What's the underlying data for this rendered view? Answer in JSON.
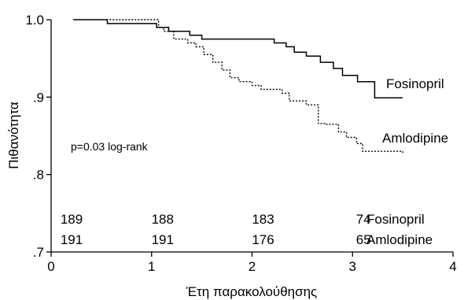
{
  "chart_data": {
    "type": "line",
    "subtype": "kaplan-meier-step",
    "title": "",
    "xlabel": "Έτη παρακολούθησης",
    "ylabel": "Πιθανότητα",
    "xlim": [
      0,
      4
    ],
    "ylim": [
      0.7,
      1.0
    ],
    "x_ticks": [
      0,
      1,
      2,
      3,
      4
    ],
    "x_tick_labels": [
      "0",
      "1",
      "2",
      "3",
      "4"
    ],
    "y_ticks": [
      0.7,
      0.8,
      0.9,
      1.0
    ],
    "y_tick_labels": [
      ".7",
      ".8",
      ".9",
      "1.0"
    ],
    "grid": false,
    "legend": "direct labels at line ends",
    "annotation": "p=0.03 log-rank",
    "series": [
      {
        "name": "Fosinopril",
        "line_style": "solid",
        "color": "#000000",
        "x": [
          0.22,
          0.56,
          1.05,
          1.17,
          1.38,
          1.5,
          1.67,
          2.22,
          2.34,
          2.42,
          2.54,
          2.68,
          2.81,
          2.9,
          3.05,
          3.22,
          3.5
        ],
        "y": [
          1.0,
          0.995,
          0.99,
          0.985,
          0.98,
          0.975,
          0.975,
          0.97,
          0.965,
          0.958,
          0.953,
          0.945,
          0.937,
          0.928,
          0.92,
          0.899,
          0.899
        ]
      },
      {
        "name": "Amlodipine",
        "line_style": "dotted",
        "color": "#000000",
        "x": [
          0.55,
          1.07,
          1.12,
          1.22,
          1.36,
          1.44,
          1.52,
          1.61,
          1.7,
          1.78,
          1.87,
          2.0,
          2.09,
          2.3,
          2.37,
          2.54,
          2.66,
          2.74,
          2.86,
          2.94,
          3.04,
          3.1,
          3.5
        ],
        "y": [
          1.0,
          0.99,
          0.985,
          0.975,
          0.97,
          0.965,
          0.955,
          0.945,
          0.935,
          0.925,
          0.92,
          0.915,
          0.91,
          0.905,
          0.895,
          0.89,
          0.866,
          0.865,
          0.855,
          0.848,
          0.84,
          0.83,
          0.828
        ]
      }
    ],
    "risk_table": {
      "rows": [
        {
          "name": "Fosinopril",
          "values": [
            "189",
            "188",
            "183",
            "74"
          ]
        },
        {
          "name": "Amlodipine",
          "values": [
            "191",
            "191",
            "176",
            "65"
          ]
        }
      ],
      "x": [
        0.0,
        1.0,
        2.0,
        3.0
      ]
    }
  }
}
